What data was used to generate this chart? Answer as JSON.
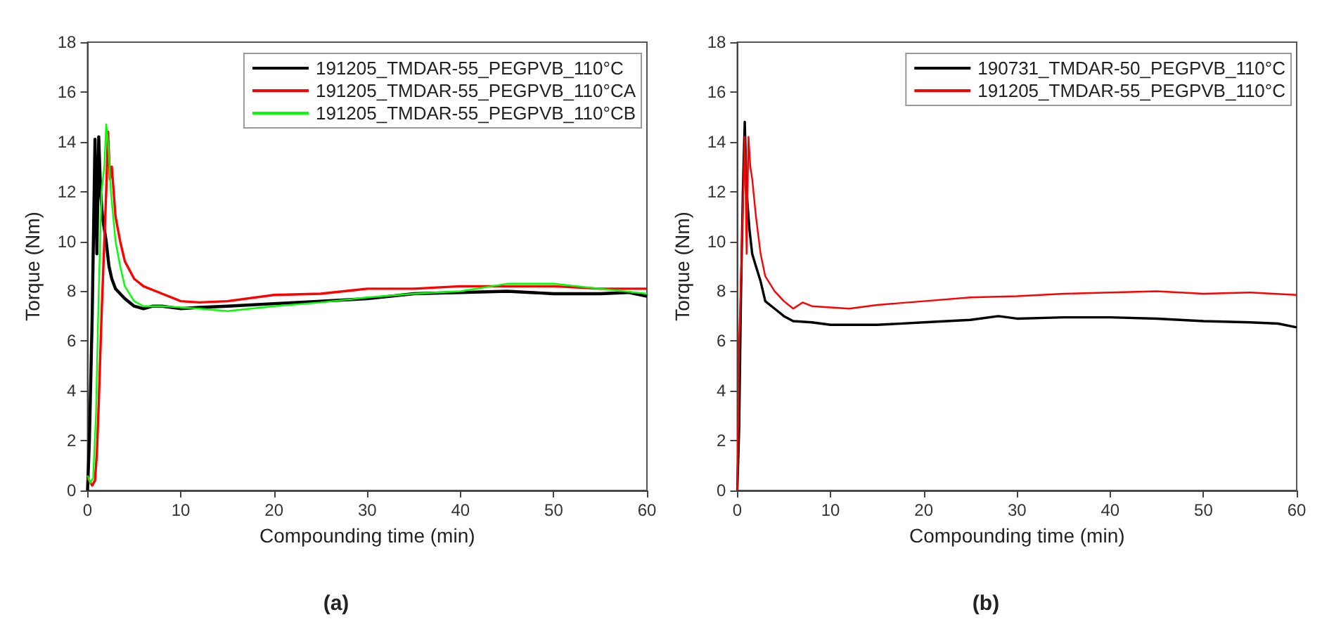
{
  "chart_data": [
    {
      "type": "line",
      "xlabel": "Compounding time (min)",
      "ylabel": "Torque (Nm)",
      "xlim": [
        0,
        60
      ],
      "ylim": [
        0,
        18
      ],
      "xticks": [
        0,
        10,
        20,
        30,
        40,
        50,
        60
      ],
      "yticks": [
        0,
        2,
        4,
        6,
        8,
        10,
        12,
        14,
        16,
        18
      ],
      "grid": false,
      "legend": "top right",
      "marker": "none",
      "annotations": [
        "(a)"
      ],
      "series": [
        {
          "name": "191205_TMDAR-55_PEGPVB_110°C",
          "color": "#000000",
          "x": [
            0,
            0.2,
            0.5,
            0.8,
            1.0,
            1.2,
            1.4,
            1.6,
            1.8,
            2.0,
            2.3,
            2.6,
            3,
            3.5,
            4,
            5,
            6,
            7,
            8,
            10,
            12,
            15,
            20,
            25,
            30,
            35,
            40,
            45,
            50,
            55,
            58,
            60
          ],
          "values": [
            0,
            2,
            7,
            14.1,
            9.5,
            14.2,
            12,
            11,
            10.5,
            10,
            9,
            8.5,
            8.1,
            7.9,
            7.7,
            7.4,
            7.3,
            7.4,
            7.4,
            7.3,
            7.35,
            7.4,
            7.5,
            7.6,
            7.7,
            7.9,
            7.95,
            8.0,
            7.9,
            7.9,
            7.95,
            7.8
          ]
        },
        {
          "name": "191205_TMDAR-55_PEGPVB_110°CA",
          "color": "#ff0000",
          "x": [
            0,
            0.5,
            0.8,
            1.0,
            1.2,
            1.5,
            1.8,
            2.0,
            2.2,
            2.4,
            2.6,
            3,
            3.5,
            4,
            5,
            6,
            8,
            10,
            12,
            15,
            20,
            25,
            30,
            35,
            40,
            45,
            50,
            55,
            60
          ],
          "values": [
            0.5,
            0.2,
            0.4,
            1.5,
            3.5,
            7,
            10,
            12,
            14.4,
            12.5,
            13,
            11,
            10,
            9.2,
            8.5,
            8.2,
            7.9,
            7.6,
            7.55,
            7.6,
            7.85,
            7.9,
            8.1,
            8.1,
            8.2,
            8.2,
            8.2,
            8.1,
            8.1
          ]
        },
        {
          "name": "191205_TMDAR-55_PEGPVB_110°CB",
          "color": "#00ff00",
          "x": [
            0,
            0.3,
            0.6,
            0.9,
            1.2,
            1.5,
            1.8,
            2.0,
            2.2,
            2.5,
            3,
            3.5,
            4,
            5,
            6,
            8,
            10,
            12,
            15,
            20,
            25,
            30,
            35,
            40,
            45,
            50,
            55,
            60
          ],
          "values": [
            0.6,
            0.3,
            0.5,
            3,
            8,
            12,
            13,
            14.7,
            14,
            12,
            10,
            9,
            8.2,
            7.6,
            7.4,
            7.4,
            7.35,
            7.3,
            7.2,
            7.4,
            7.55,
            7.75,
            7.9,
            8.0,
            8.3,
            8.3,
            8.1,
            7.9
          ]
        }
      ]
    },
    {
      "type": "line",
      "xlabel": "Compounding time (min)",
      "ylabel": "Torque (Nm)",
      "xlim": [
        0,
        60
      ],
      "ylim": [
        0,
        18
      ],
      "xticks": [
        0,
        10,
        20,
        30,
        40,
        50,
        60
      ],
      "yticks": [
        0,
        2,
        4,
        6,
        8,
        10,
        12,
        14,
        16,
        18
      ],
      "grid": false,
      "legend": "top right",
      "marker": "none",
      "annotations": [
        "(b)"
      ],
      "series": [
        {
          "name": "190731_TMDAR-50_PEGPVB_110°C",
          "color": "#000000",
          "x": [
            0,
            0.2,
            0.4,
            0.6,
            0.8,
            1.0,
            1.3,
            1.6,
            2,
            2.5,
            3,
            4,
            5,
            6,
            8,
            10,
            15,
            20,
            25,
            28,
            30,
            35,
            40,
            45,
            50,
            55,
            58,
            60
          ],
          "values": [
            0,
            2.5,
            8,
            12,
            14.8,
            12,
            10.5,
            9.5,
            9,
            8.4,
            7.6,
            7.3,
            7.0,
            6.8,
            6.75,
            6.65,
            6.65,
            6.75,
            6.85,
            7.0,
            6.9,
            6.95,
            6.95,
            6.9,
            6.8,
            6.75,
            6.7,
            6.55
          ]
        },
        {
          "name": "191205_TMDAR-55_PEGPVB_110°C",
          "color": "#ff0000",
          "x": [
            0,
            0.2,
            0.5,
            0.8,
            1.0,
            1.2,
            1.4,
            1.6,
            2,
            2.5,
            3,
            4,
            5,
            6,
            7,
            8,
            10,
            12,
            15,
            20,
            25,
            30,
            35,
            40,
            45,
            50,
            55,
            60
          ],
          "values": [
            0,
            6,
            10,
            14.2,
            9.5,
            14.2,
            13,
            12.5,
            11,
            9.5,
            8.6,
            8.0,
            7.6,
            7.3,
            7.55,
            7.4,
            7.35,
            7.3,
            7.45,
            7.6,
            7.75,
            7.8,
            7.9,
            7.95,
            8.0,
            7.9,
            7.95,
            7.85
          ]
        }
      ]
    }
  ]
}
